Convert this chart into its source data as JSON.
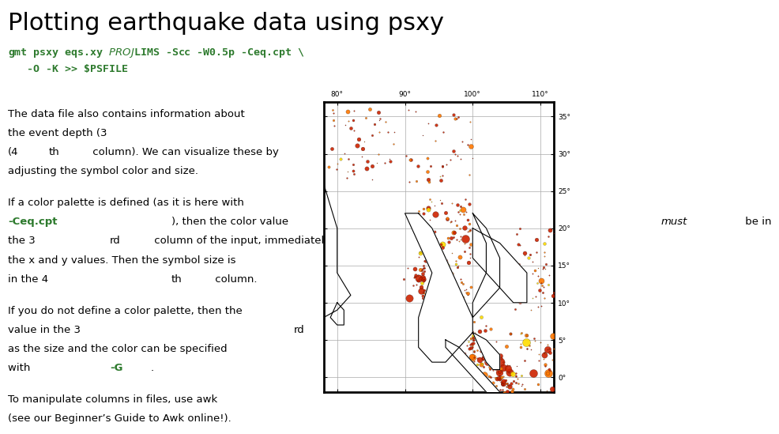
{
  "title": "Plotting earthquake data using psxy",
  "title_fontsize": 22,
  "title_color": "#000000",
  "code_line1": "gmt psxy eqs.xy $PROJ $LIMS -Scc -W0.5p -Ceq.cpt \\",
  "code_line2": "   -O -K >> $PSFILE",
  "code_color": "#2d7a2d",
  "code_fontsize": 9.5,
  "body_fontsize": 9.5,
  "body_color": "#000000",
  "highlight_color": "#2d7a2d",
  "background_color": "#ffffff",
  "map_xlim": [
    78,
    112
  ],
  "map_ylim": [
    -2,
    37
  ],
  "map_xticks": [
    80,
    90,
    100,
    110
  ],
  "map_yticks": [
    0,
    5,
    10,
    15,
    20,
    25,
    30,
    35
  ]
}
